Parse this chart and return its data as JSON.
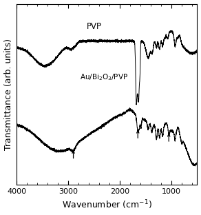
{
  "xlabel": "Wavenumber (cm$^{-1}$)",
  "ylabel": "Transmittance (arb. units)",
  "xlim": [
    4000,
    500
  ],
  "pvp_label": "PVP",
  "au_label": "Au/Bi$_2$O$_3$/PVP",
  "background_color": "#ffffff",
  "line_color": "#000000",
  "xticks": [
    4000,
    3000,
    2000,
    1000
  ],
  "fontsize_label": 9,
  "fontsize_tick": 8,
  "fontsize_annotation": 8.5
}
